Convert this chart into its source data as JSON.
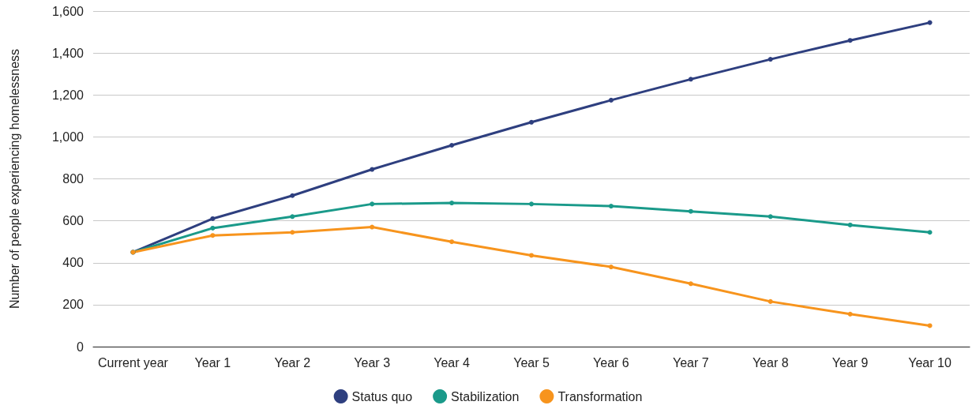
{
  "chart_data": {
    "type": "line",
    "ylabel": "Number of people experiencing homelessness",
    "categories": [
      "Current year",
      "Year 1",
      "Year 2",
      "Year 3",
      "Year 4",
      "Year 5",
      "Year 6",
      "Year 7",
      "Year 8",
      "Year 9",
      "Year 10"
    ],
    "series": [
      {
        "name": "Status quo",
        "color": "#2e3f7f",
        "values": [
          450,
          610,
          720,
          845,
          960,
          1070,
          1175,
          1275,
          1370,
          1460,
          1545
        ]
      },
      {
        "name": "Stabilization",
        "color": "#1a9a8a",
        "values": [
          450,
          565,
          620,
          680,
          685,
          680,
          670,
          645,
          620,
          580,
          545
        ]
      },
      {
        "name": "Transformation",
        "color": "#f7941d",
        "values": [
          450,
          530,
          545,
          570,
          500,
          435,
          380,
          300,
          215,
          155,
          100
        ]
      }
    ],
    "ylim": [
      0,
      1600
    ],
    "yticks": [
      0,
      200,
      400,
      600,
      800,
      {
        "value": 1000,
        "label": "1,000"
      },
      {
        "value": 1200,
        "label": "1,200"
      },
      {
        "value": 1400,
        "label": "1,400"
      },
      {
        "value": 1600,
        "label": "1,600"
      }
    ],
    "grid": "y",
    "legend": "bottom",
    "marker": "circle",
    "line_style": "solid"
  }
}
